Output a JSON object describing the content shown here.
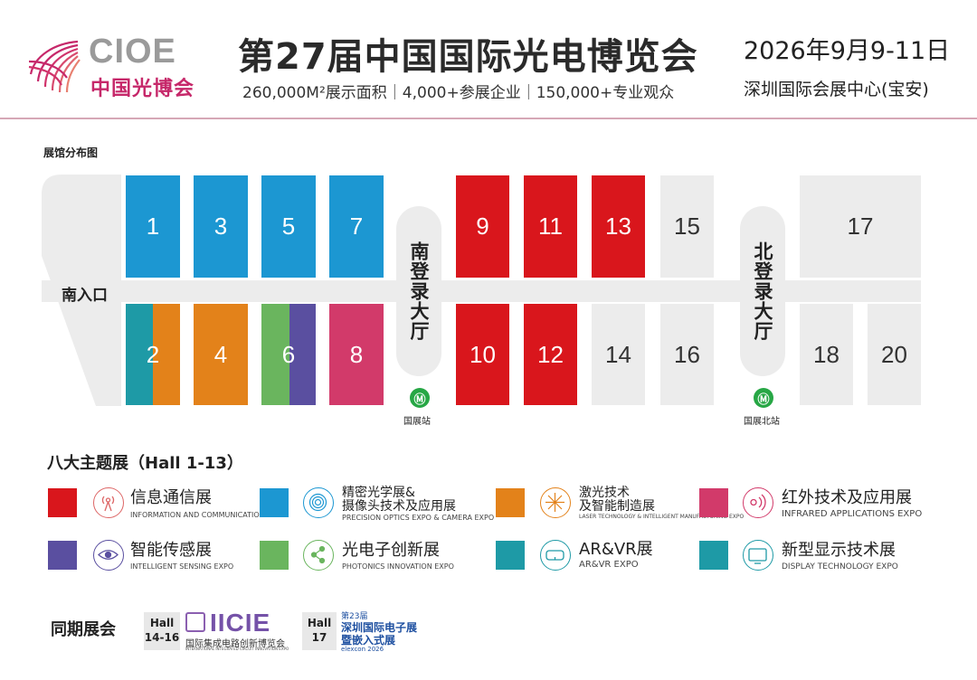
{
  "header": {
    "logo_text": "CIOE",
    "logo_cn": "中国光博会",
    "title": "第27届中国国际光电博览会",
    "subtitle": "260,000M²展示面积｜4,000+参展企业｜150,000+专业观众",
    "date": "2026年9月9-11日",
    "venue": "深圳国际会展中心(宝安)",
    "accent_color": "#c6286a"
  },
  "map": {
    "title": "展馆分布图",
    "south_entrance": "南入口",
    "south_lobby": "南登录大厅",
    "north_lobby": "北登录大厅",
    "south_station": "国展站",
    "north_station": "国展北站",
    "metro_icon": "metro-icon",
    "halls": {
      "h1": "1",
      "h2": "2",
      "h3": "3",
      "h4": "4",
      "h5": "5",
      "h6": "6",
      "h7": "7",
      "h8": "8",
      "h9": "9",
      "h10": "10",
      "h11": "11",
      "h12": "12",
      "h13": "13",
      "h14": "14",
      "h15": "15",
      "h16": "16",
      "h17": "17",
      "h18": "18",
      "h20": "20"
    }
  },
  "legend": {
    "title": "八大主题展（Hall 1-13）",
    "items": [
      {
        "cn": "信息通信展",
        "en": "INFORMATION AND COMMUNICATION EXPO",
        "color": "#d9161c",
        "icon": "antenna-icon"
      },
      {
        "cn": "精密光学展&",
        "cn2": "摄像头技术及应用展",
        "en": "PRECISION OPTICS EXPO & CAMERA EXPO",
        "color": "#1c97d2",
        "icon": "lens-icon"
      },
      {
        "cn": "激光技术",
        "cn2": "及智能制造展",
        "en": "LASER TECHNOLOGY & INTELLIGENT MANUFACTURING EXPO",
        "color": "#e3821a",
        "icon": "laser-burst-icon"
      },
      {
        "cn": "红外技术及应用展",
        "en": "INFRARED APPLICATIONS EXPO",
        "color": "#d23a6a",
        "icon": "infrared-icon"
      },
      {
        "cn": "智能传感展",
        "en": "INTELLIGENT SENSING EXPO",
        "color": "#5a4fa0",
        "icon": "eye-icon"
      },
      {
        "cn": "光电子创新展",
        "en": "PHOTONICS INNOVATION EXPO",
        "color": "#6ab55e",
        "icon": "network-icon"
      },
      {
        "cn": "AR&VR展",
        "en": "AR&VR EXPO",
        "color": "#1e9aa6",
        "icon": "vr-headset-icon"
      },
      {
        "cn": "新型显示技术展",
        "en": "DISPLAY TECHNOLOGY EXPO",
        "color": "#1e9aa6",
        "icon": "display-icon"
      }
    ]
  },
  "concurrent": {
    "label": "同期展会",
    "iicie_hall": "Hall",
    "iicie_hall_num": "14-16",
    "iicie_logo": "IICIE",
    "iicie_cn": "国际集成电路创新博览会",
    "iicie_en": "INTERNATIONAL INTEGRATED CIRCUIT INNOVATION EXPO",
    "elexcon_hall": "Hall",
    "elexcon_hall_num": "17",
    "elexcon_edition": "第23届",
    "elexcon_cn1": "深圳国际电子展",
    "elexcon_cn2": "暨嵌入式展",
    "elexcon_brand": "elexcon 2026"
  }
}
